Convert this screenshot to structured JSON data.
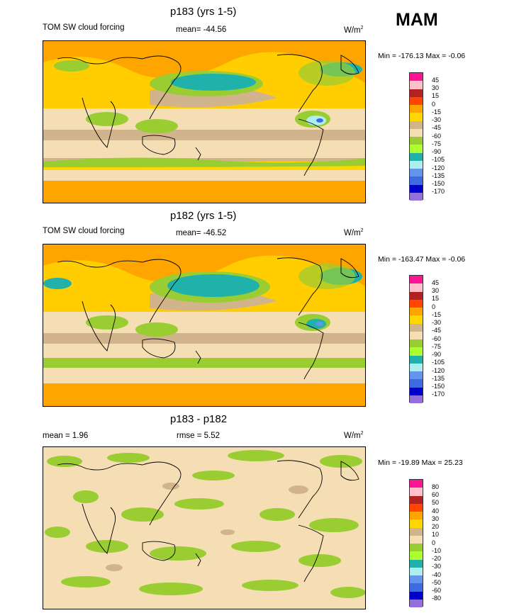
{
  "season": "MAM",
  "panels": [
    {
      "title": "p183 (yrs 1-5)",
      "left_label": "TOM SW cloud forcing",
      "center_label": "mean= -44.56",
      "units": "W/m",
      "units_sup": "2",
      "minmax": "Min = -176.13 Max =  -0.06",
      "colorbar_labels": [
        "45",
        "30",
        "15",
        "0",
        "-15",
        "-30",
        "-45",
        "-60",
        "-75",
        "-90",
        "-105",
        "-120",
        "-135",
        "-150",
        "-170"
      ]
    },
    {
      "title": "p182 (yrs 1-5)",
      "left_label": "TOM SW cloud forcing",
      "center_label": "mean= -46.52",
      "units": "W/m",
      "units_sup": "2",
      "minmax": "Min = -163.47 Max =  -0.06",
      "colorbar_labels": [
        "45",
        "30",
        "15",
        "0",
        "-15",
        "-30",
        "-45",
        "-60",
        "-75",
        "-90",
        "-105",
        "-120",
        "-135",
        "-150",
        "-170"
      ]
    },
    {
      "title": "p183 - p182",
      "left_label": "mean =   1.96",
      "center_label": "rmse =   5.52",
      "units": "W/m",
      "units_sup": "2",
      "minmax": "Min = -19.89 Max =  25.23",
      "colorbar_labels": [
        "80",
        "60",
        "50",
        "40",
        "30",
        "20",
        "10",
        "0",
        "-10",
        "-20",
        "-30",
        "-40",
        "-50",
        "-60",
        "-80"
      ]
    }
  ],
  "colors": {
    "cbar": [
      "#ff1493",
      "#ffc0cb",
      "#b22222",
      "#ff4500",
      "#ffa500",
      "#ffd700",
      "#d2b48c",
      "#f5deb3",
      "#9acd32",
      "#adff2f",
      "#20b2aa",
      "#afeeee",
      "#6495ed",
      "#4169e1",
      "#0000cd",
      "#9370db"
    ]
  },
  "chart_data": [
    {
      "type": "heatmap",
      "title": "p183 (yrs 1-5)",
      "variable": "TOM SW cloud forcing",
      "mean": -44.56,
      "min": -176.13,
      "max": -0.06,
      "units": "W/m2",
      "levels": [
        45,
        30,
        15,
        0,
        -15,
        -30,
        -45,
        -60,
        -75,
        -90,
        -105,
        -120,
        -135,
        -150,
        -170
      ]
    },
    {
      "type": "heatmap",
      "title": "p182 (yrs 1-5)",
      "variable": "TOM SW cloud forcing",
      "mean": -46.52,
      "min": -163.47,
      "max": -0.06,
      "units": "W/m2",
      "levels": [
        45,
        30,
        15,
        0,
        -15,
        -30,
        -45,
        -60,
        -75,
        -90,
        -105,
        -120,
        -135,
        -150,
        -170
      ]
    },
    {
      "type": "heatmap",
      "title": "p183 - p182",
      "mean": 1.96,
      "rmse": 5.52,
      "min": -19.89,
      "max": 25.23,
      "units": "W/m2",
      "levels": [
        80,
        60,
        50,
        40,
        30,
        20,
        10,
        0,
        -10,
        -20,
        -30,
        -40,
        -50,
        -60,
        -80
      ]
    }
  ]
}
